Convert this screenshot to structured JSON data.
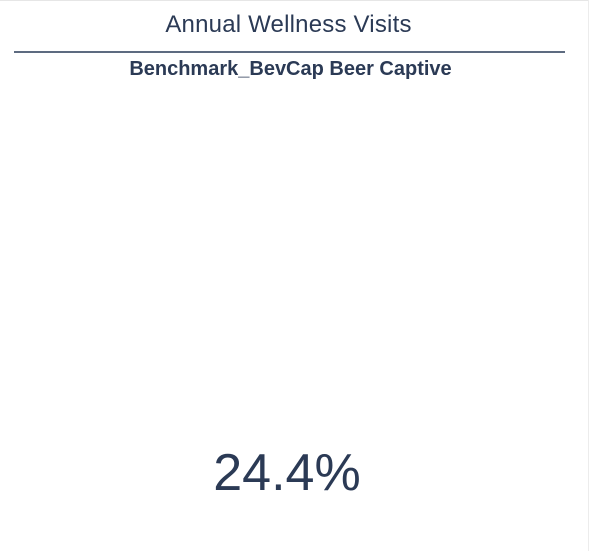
{
  "header": {
    "title": "Annual Wellness Visits",
    "subtitle": "Benchmark_BevCap Beer Captive"
  },
  "kpi": {
    "value": "24.4%"
  },
  "colors": {
    "text": "#2b3a55",
    "divider": "#5d6b80",
    "background": "#ffffff"
  }
}
